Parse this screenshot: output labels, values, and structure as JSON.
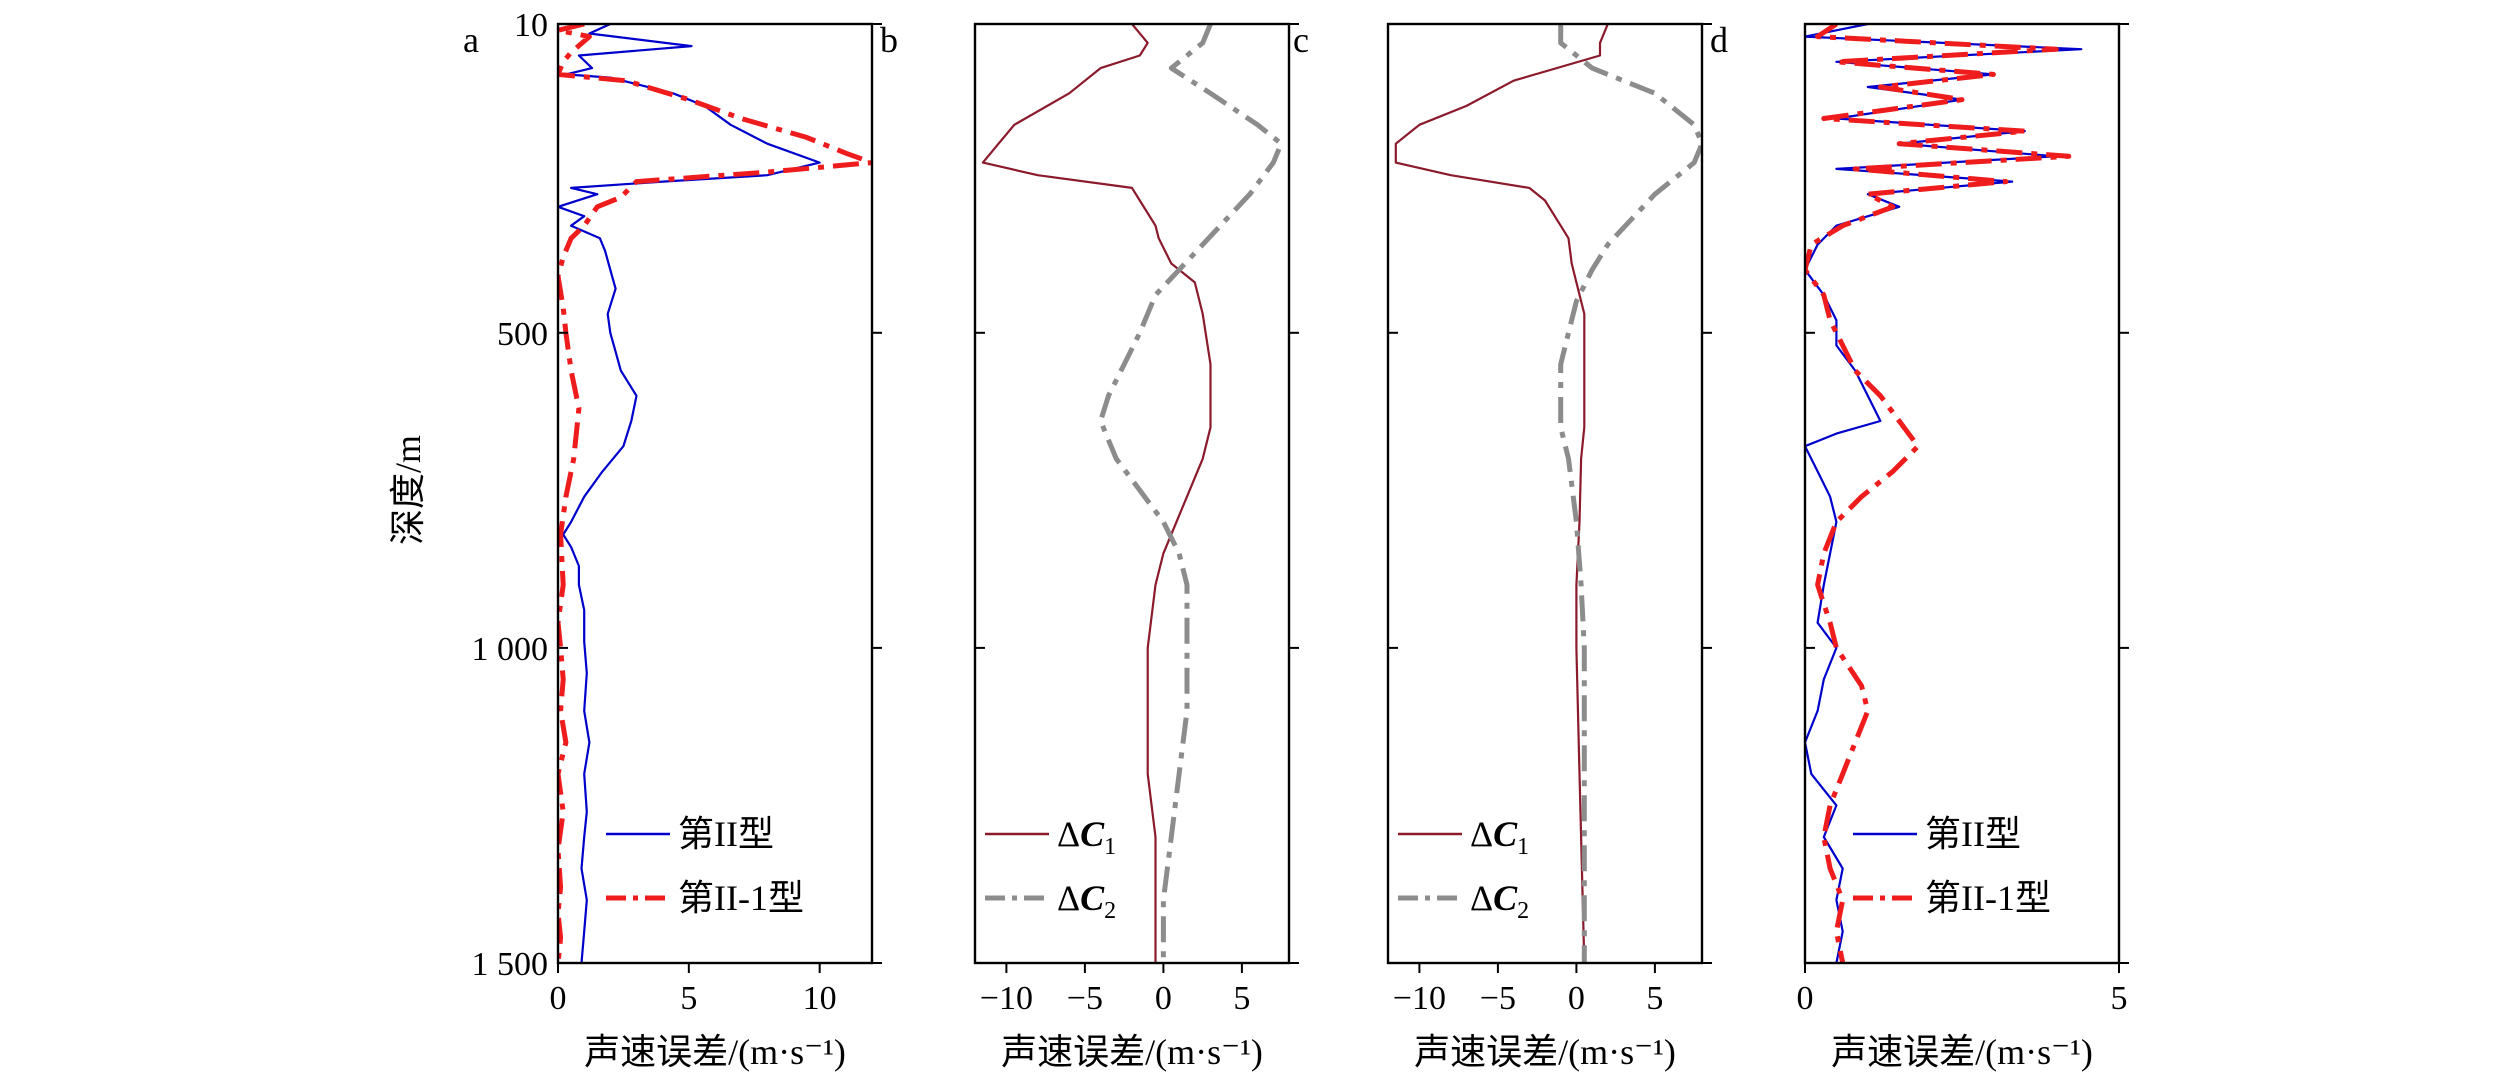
{
  "figure": {
    "ylabel": "深度/m",
    "xlabel": "声速误差/(m·s⁻¹)"
  },
  "colors": {
    "series_blue": "#0000cc",
    "series_red": "#ee1c1c",
    "series_darkred": "#8b1a2b",
    "series_gray": "#8c8c8c",
    "axis": "#000000"
  },
  "chart_data": [
    {
      "panel": "a",
      "type": "line",
      "xlim": [
        0,
        12
      ],
      "ylim": [
        1500,
        10
      ],
      "xticks": [
        0,
        5,
        10
      ],
      "xticklabels": [
        "0",
        "5",
        "10"
      ],
      "yticks": [
        10,
        500,
        1000,
        1500
      ],
      "yticklabels": [
        "10",
        "500",
        "1 000",
        "1 500"
      ],
      "xlabel": "声速误差/(m·s⁻¹)",
      "ylabel": "深度/m",
      "legend_position": "bottom-right",
      "series": [
        {
          "name": "第II型",
          "color": "#0000cc",
          "dash": "solid",
          "depth": [
            10,
            25,
            45,
            60,
            80,
            90,
            95,
            120,
            140,
            170,
            200,
            230,
            250,
            260,
            270,
            280,
            300,
            315,
            330,
            350,
            370,
            400,
            430,
            470,
            500,
            530,
            560,
            600,
            640,
            680,
            720,
            760,
            800,
            820,
            840,
            870,
            900,
            940,
            990,
            1040,
            1100,
            1150,
            1200,
            1260,
            1300,
            1350,
            1400,
            1450,
            1500
          ],
          "value": [
            2.0,
            1.2,
            5.1,
            0.8,
            1.3,
            0.3,
            2.0,
            4.4,
            5.6,
            6.6,
            8.0,
            10.0,
            8.0,
            4.0,
            0.5,
            1.5,
            0.0,
            1.0,
            0.5,
            1.6,
            1.8,
            2.0,
            2.2,
            1.9,
            2.0,
            2.2,
            2.4,
            3.0,
            2.8,
            2.5,
            1.7,
            1.0,
            0.5,
            0.2,
            0.5,
            0.8,
            0.8,
            1.0,
            1.0,
            1.1,
            1.0,
            1.2,
            1.0,
            1.1,
            1.0,
            0.9,
            1.1,
            1.0,
            0.9
          ]
        },
        {
          "name": "第II-1型",
          "color": "#ee1c1c",
          "dash": "dashdot",
          "depth": [
            10,
            20,
            30,
            55,
            70,
            90,
            100,
            130,
            160,
            190,
            215,
            230,
            245,
            260,
            285,
            300,
            330,
            350,
            380,
            410,
            460,
            500,
            560,
            620,
            700,
            760,
            820,
            900,
            960,
            1000,
            1050,
            1100,
            1150,
            1200,
            1260,
            1320,
            1380,
            1420,
            1460,
            1500
          ],
          "value": [
            1.0,
            0.0,
            1.2,
            0.5,
            0.2,
            0.0,
            2.6,
            5.0,
            7.0,
            9.5,
            11.0,
            12.0,
            8.0,
            3.0,
            2.4,
            1.5,
            1.0,
            0.5,
            0.2,
            0.0,
            0.2,
            0.3,
            0.5,
            0.8,
            0.6,
            0.3,
            0.1,
            0.2,
            0.0,
            0.1,
            0.2,
            0.1,
            0.3,
            0.0,
            0.2,
            0.0,
            0.1,
            0.0,
            0.1,
            0.0
          ]
        }
      ]
    },
    {
      "panel": "b",
      "type": "line",
      "xlim": [
        -12,
        8
      ],
      "ylim": [
        1500,
        10
      ],
      "xticks": [
        -10,
        -5,
        0,
        5
      ],
      "xticklabels": [
        "−10",
        "−5",
        "0",
        "5"
      ],
      "yticks": [
        10,
        500,
        1000,
        1500
      ],
      "xlabel": "声速误差/(m·s⁻¹)",
      "legend_position": "bottom-left",
      "series": [
        {
          "name": "ΔC₁",
          "sub": "1",
          "color": "#8b1a2b",
          "dash": "solid",
          "depth": [
            10,
            40,
            60,
            80,
            120,
            170,
            200,
            230,
            250,
            270,
            290,
            330,
            350,
            390,
            420,
            470,
            550,
            650,
            700,
            790,
            850,
            900,
            1000,
            1100,
            1200,
            1300,
            1400,
            1500
          ],
          "value": [
            -2.0,
            -1.0,
            -1.5,
            -4.0,
            -6.0,
            -9.5,
            -10.5,
            -11.5,
            -8.0,
            -2.0,
            -1.5,
            -0.5,
            -0.3,
            0.5,
            2.0,
            2.5,
            3.0,
            3.0,
            2.5,
            1.0,
            0.0,
            -0.5,
            -1.0,
            -1.0,
            -1.0,
            -0.5,
            -0.5,
            -0.5
          ]
        },
        {
          "name": "ΔC₂",
          "sub": "2",
          "color": "#8c8c8c",
          "dash": "dashdot",
          "depth": [
            10,
            40,
            80,
            120,
            170,
            200,
            230,
            280,
            320,
            360,
            400,
            440,
            500,
            550,
            600,
            640,
            700,
            750,
            800,
            850,
            900,
            1000,
            1100,
            1200,
            1300,
            1400,
            1500
          ],
          "value": [
            3.0,
            2.5,
            0.5,
            3.0,
            6.0,
            7.5,
            7.0,
            5.5,
            4.0,
            2.5,
            1.0,
            -0.5,
            -1.5,
            -2.5,
            -3.5,
            -4.0,
            -3.0,
            -1.5,
            0.0,
            1.0,
            1.5,
            1.5,
            1.5,
            1.0,
            0.5,
            0.0,
            0.0
          ]
        }
      ]
    },
    {
      "panel": "c",
      "type": "line",
      "xlim": [
        -12,
        8
      ],
      "ylim": [
        1500,
        10
      ],
      "xticks": [
        -10,
        -5,
        0,
        5
      ],
      "xticklabels": [
        "−10",
        "−5",
        "0",
        "5"
      ],
      "yticks": [
        10,
        500,
        1000,
        1500
      ],
      "xlabel": "声速误差/(m·s⁻¹)",
      "legend_position": "bottom-left",
      "series": [
        {
          "name": "ΔC₁",
          "sub": "1",
          "color": "#8b1a2b",
          "dash": "solid",
          "depth": [
            10,
            40,
            60,
            100,
            140,
            170,
            200,
            230,
            250,
            270,
            290,
            330,
            350,
            390,
            420,
            470,
            550,
            650,
            700,
            800,
            900,
            1000,
            1200,
            1500
          ],
          "value": [
            2.0,
            1.5,
            1.5,
            -4.0,
            -7.0,
            -10.0,
            -11.5,
            -11.5,
            -8.0,
            -3.0,
            -2.0,
            -1.0,
            -0.5,
            -0.3,
            0.0,
            0.5,
            0.5,
            0.5,
            0.3,
            0.2,
            0.0,
            0.0,
            0.2,
            0.5
          ]
        },
        {
          "name": "ΔC₂",
          "sub": "2",
          "color": "#8c8c8c",
          "dash": "dashdot",
          "depth": [
            10,
            40,
            80,
            120,
            170,
            200,
            230,
            280,
            320,
            360,
            400,
            450,
            500,
            550,
            600,
            650,
            700,
            800,
            900,
            1000,
            1100,
            1200,
            1300,
            1400,
            1500
          ],
          "value": [
            -1.0,
            -1.0,
            1.0,
            5.0,
            7.5,
            8.0,
            7.5,
            5.0,
            3.5,
            2.0,
            1.0,
            0.0,
            -0.5,
            -1.0,
            -1.0,
            -1.0,
            -0.5,
            0.0,
            0.3,
            0.5,
            0.5,
            0.5,
            0.5,
            0.5,
            0.5
          ]
        }
      ]
    },
    {
      "panel": "d",
      "type": "line",
      "xlim": [
        0,
        5
      ],
      "ylim": [
        1500,
        10
      ],
      "xticks": [
        0,
        5
      ],
      "xticklabels": [
        "0",
        "5"
      ],
      "yticks": [
        10,
        500,
        1000,
        1500
      ],
      "xlabel": "声速误差/(m·s⁻¹)",
      "legend_position": "bottom-right",
      "series": [
        {
          "name": "第II型",
          "color": "#0000cc",
          "dash": "solid",
          "depth": [
            10,
            30,
            50,
            70,
            90,
            110,
            130,
            160,
            180,
            200,
            220,
            240,
            260,
            280,
            300,
            330,
            360,
            400,
            440,
            480,
            520,
            560,
            600,
            640,
            660,
            680,
            720,
            760,
            800,
            850,
            900,
            960,
            1000,
            1050,
            1100,
            1150,
            1200,
            1250,
            1300,
            1350,
            1400,
            1450,
            1500
          ],
          "value": [
            1.0,
            0.0,
            4.4,
            0.5,
            3.0,
            1.0,
            2.5,
            0.5,
            3.5,
            1.5,
            4.0,
            0.5,
            3.3,
            1.0,
            1.5,
            0.5,
            0.2,
            0.0,
            0.3,
            0.5,
            0.5,
            0.8,
            1.0,
            1.2,
            0.5,
            0.0,
            0.2,
            0.4,
            0.5,
            0.4,
            0.3,
            0.2,
            0.5,
            0.3,
            0.2,
            0.0,
            0.1,
            0.5,
            0.3,
            0.6,
            0.5,
            0.6,
            0.5
          ]
        },
        {
          "name": "第II-1型",
          "color": "#ee1c1c",
          "dash": "dashdot",
          "depth": [
            10,
            30,
            50,
            70,
            90,
            110,
            130,
            160,
            180,
            200,
            220,
            240,
            260,
            280,
            300,
            330,
            360,
            400,
            440,
            480,
            520,
            560,
            600,
            640,
            680,
            720,
            760,
            800,
            850,
            900,
            960,
            1000,
            1060,
            1100,
            1150,
            1200,
            1250,
            1300,
            1350,
            1400,
            1450,
            1500
          ],
          "value": [
            0.5,
            0.2,
            4.0,
            0.5,
            3.0,
            1.2,
            2.5,
            0.3,
            3.5,
            1.5,
            4.2,
            0.8,
            3.2,
            1.0,
            1.4,
            0.6,
            0.1,
            0.0,
            0.3,
            0.4,
            0.6,
            0.8,
            1.2,
            1.5,
            1.8,
            1.4,
            0.9,
            0.5,
            0.3,
            0.2,
            0.4,
            0.5,
            0.9,
            1.0,
            0.8,
            0.6,
            0.4,
            0.3,
            0.4,
            0.6,
            0.5,
            0.6
          ]
        }
      ]
    }
  ]
}
